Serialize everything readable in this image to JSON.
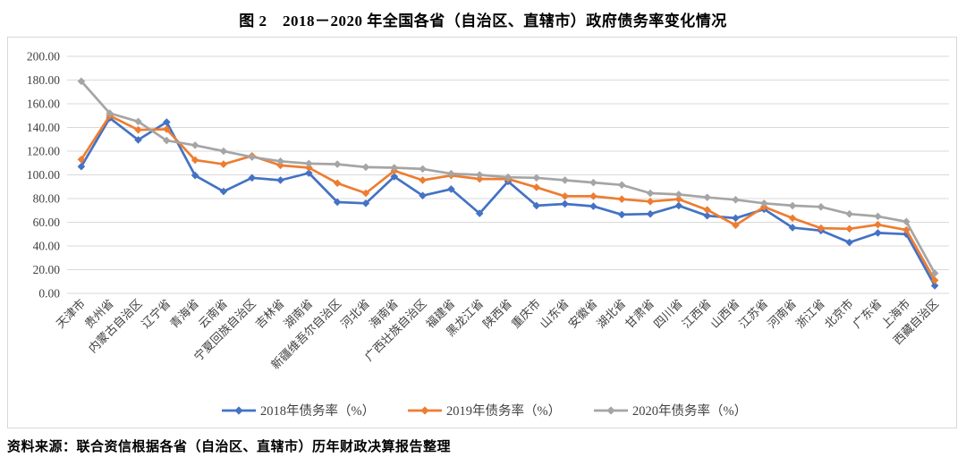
{
  "title": "图 2　2018－2020 年全国各省（自治区、直辖市）政府债务率变化情况",
  "source_note": "资料来源：联合资信根据各省（自治区、直辖市）历年财政决算报告整理",
  "colors": {
    "series_2018": "#4472c4",
    "series_2019": "#ed7d31",
    "series_2020": "#a5a5a5",
    "gridline": "#d9d9d9",
    "axis_text": "#404040",
    "chart_border": "#d8d8d8"
  },
  "chart_data": {
    "type": "line",
    "marker": "diamond",
    "grid": true,
    "legend_position": "bottom",
    "ylim": [
      0,
      200
    ],
    "ytick_step": 20,
    "ytick_labels": [
      "0.00",
      "20.00",
      "40.00",
      "60.00",
      "80.00",
      "100.00",
      "120.00",
      "140.00",
      "160.00",
      "180.00",
      "200.00"
    ],
    "categories": [
      "天津市",
      "贵州省",
      "内蒙古自治区",
      "辽宁省",
      "青海省",
      "云南省",
      "宁夏回族自治区",
      "吉林省",
      "湖南省",
      "新疆维吾尔自治区",
      "河北省",
      "海南省",
      "广西壮族自治区",
      "福建省",
      "黑龙江省",
      "陕西省",
      "重庆市",
      "山东省",
      "安徽省",
      "湖北省",
      "甘肃省",
      "四川省",
      "江西省",
      "山西省",
      "江苏省",
      "河南省",
      "浙江省",
      "北京市",
      "广东省",
      "上海市",
      "西藏自治区"
    ],
    "series": [
      {
        "name": "2018年债务率（%）",
        "color_key": "series_2018",
        "values": [
          107,
          148,
          129.5,
          144.5,
          99.5,
          86,
          97.5,
          95.5,
          101.5,
          77,
          76,
          98.5,
          82.5,
          88,
          67.5,
          94.5,
          74,
          75.5,
          73.5,
          66.5,
          67,
          74,
          65.5,
          63.5,
          71,
          55.5,
          53,
          43,
          51,
          50,
          6.5
        ]
      },
      {
        "name": "2019年债务率（%）",
        "color_key": "series_2019",
        "values": [
          113,
          150,
          138,
          138.5,
          112.5,
          109,
          116,
          108,
          106,
          93,
          84.5,
          103.5,
          95.5,
          99.5,
          96.5,
          96.5,
          89.5,
          82,
          82,
          79.5,
          77.5,
          79.5,
          70.5,
          57.5,
          73,
          63.5,
          55,
          54.5,
          58,
          53.5,
          11
        ]
      },
      {
        "name": "2020年债务率（%）",
        "color_key": "series_2020",
        "values": [
          179,
          152,
          145,
          129,
          125,
          120,
          115,
          111.5,
          109.5,
          109,
          106.5,
          106,
          105,
          101,
          100,
          98,
          97.5,
          95.5,
          93.5,
          91.5,
          84.5,
          83.5,
          81,
          79,
          76,
          74,
          73,
          67,
          65,
          60.5,
          17
        ]
      }
    ]
  }
}
